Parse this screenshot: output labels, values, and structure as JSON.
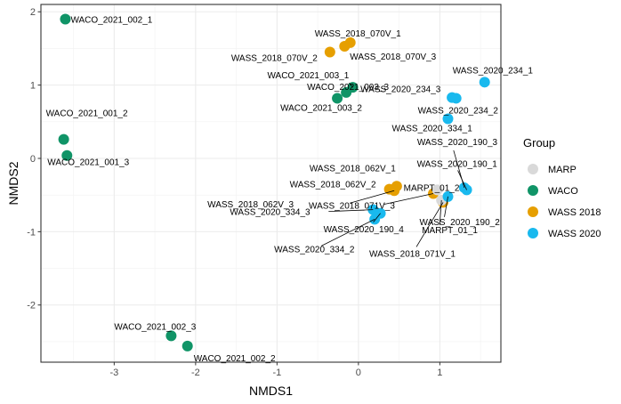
{
  "chart_data": {
    "type": "scatter",
    "title": "",
    "xlabel": "NMDS1",
    "ylabel": "NMDS2",
    "xlim": [
      -3.9,
      1.75
    ],
    "ylim": [
      -2.78,
      2.1
    ],
    "x_ticks": [
      -3,
      -2,
      -1,
      0,
      1
    ],
    "y_ticks": [
      -2,
      -1,
      0,
      1,
      2
    ],
    "grid": true,
    "legend": {
      "title": "Group",
      "position": "right",
      "items": [
        {
          "name": "MARP",
          "color": "#d9d9d9"
        },
        {
          "name": "WACO",
          "color": "#109467"
        },
        {
          "name": "WASS 2018",
          "color": "#e69f00"
        },
        {
          "name": "WASS 2020",
          "color": "#19b9ee"
        }
      ]
    },
    "points": [
      {
        "label": "WACO_2021_002_1",
        "group": "WACO",
        "x": -3.6,
        "y": 1.9
      },
      {
        "label": "WACO_2021_001_2",
        "group": "WACO",
        "x": -3.62,
        "y": 0.26
      },
      {
        "label": "WACO_2021_001_3",
        "group": "WACO",
        "x": -3.58,
        "y": 0.04
      },
      {
        "label": "WACO_2021_003_1",
        "group": "WACO",
        "x": -0.07,
        "y": 0.97
      },
      {
        "label": "WACO_2021_003_3",
        "group": "WACO",
        "x": -0.15,
        "y": 0.9
      },
      {
        "label": "WACO_2021_003_2",
        "group": "WACO",
        "x": -0.26,
        "y": 0.82
      },
      {
        "label": "WACO_2021_002_3",
        "group": "WACO",
        "x": -2.3,
        "y": -2.42
      },
      {
        "label": "WACO_2021_002_2",
        "group": "WACO",
        "x": -2.1,
        "y": -2.56
      },
      {
        "label": "WASS_2018_070V_1",
        "group": "WASS 2018",
        "x": -0.1,
        "y": 1.58
      },
      {
        "label": "WASS_2018_070V_2",
        "group": "WASS 2018",
        "x": -0.35,
        "y": 1.45
      },
      {
        "label": "WASS_2018_070V_3",
        "group": "WASS 2018",
        "x": -0.17,
        "y": 1.53
      },
      {
        "label": "WASS_2018_062V_1",
        "group": "WASS 2018",
        "x": 0.47,
        "y": -0.38
      },
      {
        "label": "WASS_2018_062V_2",
        "group": "WASS 2018",
        "x": 0.38,
        "y": -0.42
      },
      {
        "label": "WASS_2018_062V_3",
        "group": "WASS 2018",
        "x": 0.44,
        "y": -0.44
      },
      {
        "label": "WASS_2018_071V_3",
        "group": "WASS 2018",
        "x": 0.92,
        "y": -0.48
      },
      {
        "label": "WASS_2018_071V_1",
        "group": "WASS 2018",
        "x": 1.04,
        "y": -0.6
      },
      {
        "label": "MARPT_01_2",
        "group": "MARP",
        "x": 0.97,
        "y": -0.43
      },
      {
        "label": "MARPT_01_1",
        "group": "MARP",
        "x": 1.02,
        "y": -0.57
      },
      {
        "label": "WASS_2020_234_1",
        "group": "WASS 2020",
        "x": 1.55,
        "y": 1.04
      },
      {
        "label": "WASS_2020_234_3",
        "group": "WASS 2020",
        "x": 1.15,
        "y": 0.83
      },
      {
        "label": "WASS_2020_234_2",
        "group": "WASS 2020",
        "x": 1.2,
        "y": 0.82
      },
      {
        "label": "WASS_2020_334_1",
        "group": "WASS 2020",
        "x": 1.1,
        "y": 0.54
      },
      {
        "label": "WASS_2020_190_3",
        "group": "WASS 2020",
        "x": 1.3,
        "y": -0.4
      },
      {
        "label": "WASS_2020_190_1",
        "group": "WASS 2020",
        "x": 1.33,
        "y": -0.43
      },
      {
        "label": "WASS_2020_190_2",
        "group": "WASS 2020",
        "x": 1.1,
        "y": -0.52
      },
      {
        "label": "WASS_2020_190_4",
        "group": "WASS 2020",
        "x": 0.27,
        "y": -0.75
      },
      {
        "label": "WASS_2020_334_3",
        "group": "WASS 2020",
        "x": 0.18,
        "y": -0.7
      },
      {
        "label": "WASS_2020_334_2",
        "group": "WASS 2020",
        "x": 0.2,
        "y": -0.83
      }
    ]
  }
}
